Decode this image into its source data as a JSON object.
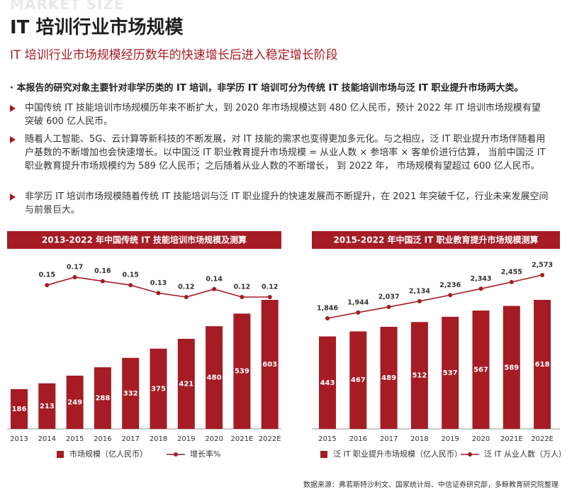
{
  "watermark": "MARKET SIZE",
  "header": {
    "title": "IT 培训行业市场规模",
    "subtitle": "IT 培训行业市场规模经历数年的快速增长后进入稳定增长阶段"
  },
  "intro": "· 本报告的研究对象主要针对非学历类的 IT 培训，非学历 IT 培训可分为传统 IT 技能培训市场与泛 IT 职业提升市场两大类。",
  "bullets": [
    "中国传统 IT 技能培训市场规模历年来不断扩大，到 2020 年市场规模达到 480 亿人民币，预计 2022 年 IT 培训市场规模有望突破 600 亿人民币。",
    "随着人工智能、5G、云计算等新科技的不断发展，对 IT 技能的需求也变得更加多元化。与之相应，泛 IT 职业提升市场伴随着用户基数的不断增加也会快速增长。以中国泛 IT 职业教育提升市场规模 = 从业人数 × 参培率 × 客单价进行估算， 当前中国泛 IT 职业教育提升市场规模约为 589 亿人民币；之后随着从业人数的不断增长， 到 2022 年， 市场规模有望超过 600 亿人民币。",
    "非学历 IT 培训市场规模随着传统 IT 技能培训与泛 IT 职业提升的快速发展而不断提升，在 2021 年突破千亿，行业未来发展空间与前景巨大。"
  ],
  "chart_data": [
    {
      "type": "bar",
      "title": "2013-2022 年中国传统 IT 技能培训市场规模及测算",
      "categories": [
        "2013",
        "2014",
        "2015",
        "2016",
        "2017",
        "2018",
        "2019",
        "2020",
        "2021E",
        "2022E"
      ],
      "series": [
        {
          "name": "市场规模（亿人民币）",
          "type": "bar",
          "color": "#a51c24",
          "values": [
            186,
            213,
            249,
            288,
            332,
            375,
            421,
            480,
            539,
            603
          ]
        },
        {
          "name": "增长率%",
          "type": "line",
          "axis": "y2",
          "color": "#a51c24",
          "values": [
            null,
            0.15,
            0.17,
            0.16,
            0.15,
            0.13,
            0.12,
            0.14,
            0.12,
            0.12
          ]
        }
      ]
    },
    {
      "type": "bar",
      "title": "2015-2022 年中国泛 IT 职业教育提升市场规模测算",
      "categories": [
        "2015",
        "2016",
        "2017",
        "2018",
        "2019",
        "2020",
        "2021E",
        "2022E"
      ],
      "series": [
        {
          "name": "泛 IT 职业提升市场规模（亿人民币）",
          "type": "bar",
          "color": "#a51c24",
          "values": [
            443,
            467,
            489,
            512,
            537,
            567,
            589,
            618
          ]
        },
        {
          "name": "泛 IT 从业人数（万人）",
          "type": "line",
          "axis": "y2",
          "color": "#a51c24",
          "values": [
            1846,
            1944,
            2037,
            2134,
            2236,
            2343,
            2455,
            2573
          ],
          "value_labels": [
            "1,846",
            "1,944",
            "2,037",
            "2,134",
            "2,236",
            "2,343",
            "2,455",
            "2,573"
          ]
        }
      ]
    }
  ],
  "source": "数据来源：弗若斯特沙利文、国家统计局、中信证券研究部，多鲸教育研究院整理"
}
